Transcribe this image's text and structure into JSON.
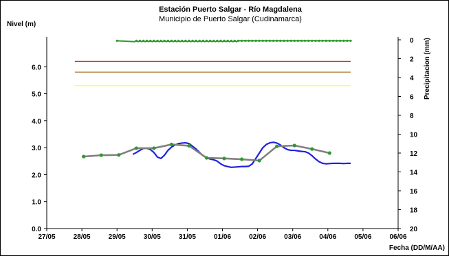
{
  "chart_data": {
    "type": "line",
    "title": "Estación Puerto Salgar - Río Magdalena",
    "subtitle": "Municipio de Puerto Salgar (Cudinamarca)",
    "ylabel": "Nivel (m)",
    "y2label": "Precipitacion (mm)",
    "xlabel": "Fecha (DD/M/AA)",
    "x_ticks": [
      "27/05",
      "28/05",
      "29/05",
      "30/05",
      "31/05",
      "01/06",
      "02/06",
      "03/06",
      "04/06",
      "05/06",
      "06/06"
    ],
    "ylim": [
      0,
      7
    ],
    "y_ticks": [
      "0.0",
      "1.0",
      "2.0",
      "3.0",
      "4.0",
      "5.0",
      "6.0"
    ],
    "y2lim": [
      0,
      20
    ],
    "y2_inverted": true,
    "y2_ticks": [
      "0",
      "2",
      "4",
      "6",
      "8",
      "10",
      "12",
      "14",
      "16",
      "18",
      "20"
    ],
    "grid": false,
    "thresholds": [
      {
        "value": 6.2,
        "color": "#e32222"
      },
      {
        "value": 5.8,
        "color": "#a67a2a"
      },
      {
        "value": 5.3,
        "color": "#ffff33"
      }
    ],
    "threshold_x_range": [
      0.8,
      8.65
    ],
    "series": [
      {
        "color": "#1f1fe0",
        "style": "line",
        "x": [
          2.45,
          2.55,
          2.65,
          2.75,
          2.85,
          2.95,
          3.05,
          3.15,
          3.25,
          3.35,
          3.45,
          3.55,
          3.65,
          3.75,
          3.85,
          3.95,
          4.05,
          4.15,
          4.25,
          4.35,
          4.45,
          4.55,
          4.65,
          4.75,
          4.85,
          4.95,
          5.05,
          5.15,
          5.25,
          5.35,
          5.45,
          5.55,
          5.65,
          5.75,
          5.85,
          5.95,
          6.05,
          6.15,
          6.25,
          6.35,
          6.45,
          6.55,
          6.65,
          6.75,
          6.85,
          6.95,
          7.05,
          7.15,
          7.25,
          7.35,
          7.45,
          7.55,
          7.65,
          7.75,
          7.85,
          7.95,
          8.05,
          8.15,
          8.25,
          8.35,
          8.45,
          8.55,
          8.65
        ],
        "y": [
          2.75,
          2.82,
          2.9,
          2.97,
          2.98,
          2.93,
          2.82,
          2.65,
          2.6,
          2.72,
          2.9,
          3.02,
          3.1,
          3.15,
          3.17,
          3.18,
          3.15,
          3.05,
          2.95,
          2.82,
          2.7,
          2.62,
          2.58,
          2.55,
          2.5,
          2.4,
          2.33,
          2.3,
          2.27,
          2.28,
          2.29,
          2.3,
          2.3,
          2.31,
          2.4,
          2.6,
          2.8,
          3.0,
          3.12,
          3.18,
          3.2,
          3.17,
          3.1,
          3.0,
          2.93,
          2.9,
          2.9,
          2.88,
          2.86,
          2.85,
          2.8,
          2.7,
          2.58,
          2.48,
          2.42,
          2.4,
          2.41,
          2.42,
          2.42,
          2.42,
          2.41,
          2.42,
          2.42
        ]
      },
      {
        "color": "#808080",
        "style": "line-markers",
        "marker_color": "#2e9a2e",
        "x": [
          1.05,
          1.55,
          2.05,
          2.55,
          3.05,
          3.55,
          4.05,
          4.55,
          5.05,
          5.55,
          6.05,
          6.55,
          7.05,
          7.55,
          8.05
        ],
        "y": [
          2.67,
          2.72,
          2.73,
          2.98,
          2.98,
          3.12,
          3.07,
          2.62,
          2.6,
          2.57,
          2.52,
          3.05,
          3.08,
          2.95,
          2.8
        ]
      }
    ],
    "precipitation": {
      "color": "#2e9a2e",
      "x": [
        2.0,
        2.5,
        2.55,
        2.6,
        2.65,
        2.7,
        2.75,
        2.8,
        2.85,
        2.9,
        2.95,
        3.0,
        3.05,
        3.1,
        3.15,
        3.2,
        3.25,
        3.3,
        3.35,
        3.4,
        3.45,
        3.5,
        3.55,
        3.6,
        3.65,
        3.7,
        3.75,
        3.8,
        3.85,
        3.9,
        3.95,
        4.0,
        4.05,
        4.1,
        4.15,
        4.2,
        4.25,
        4.3,
        4.35,
        4.4,
        4.45,
        4.5,
        4.55,
        4.6,
        4.65,
        4.7,
        4.75,
        4.8,
        4.85,
        4.9,
        4.95,
        5.0,
        5.05,
        5.1,
        5.15,
        5.2,
        5.25,
        5.3,
        5.35,
        5.4,
        5.45,
        5.5,
        5.55,
        5.6,
        5.65,
        5.7,
        5.75,
        5.8,
        5.85,
        5.9,
        5.95,
        6.0,
        6.05,
        6.1,
        6.15,
        6.2,
        6.25,
        6.3,
        6.35,
        6.4,
        6.45,
        6.5,
        6.55,
        6.6,
        6.65,
        6.7,
        6.75,
        6.8,
        6.85,
        6.9,
        6.95,
        7.0,
        7.05,
        7.1,
        7.15,
        7.2,
        7.25,
        7.3,
        7.35,
        7.4,
        7.45,
        7.5,
        7.55,
        7.6,
        7.65,
        7.7,
        7.75,
        7.8,
        7.85,
        7.9,
        7.95,
        8.0,
        8.05,
        8.1,
        8.15,
        8.2,
        8.25,
        8.3,
        8.35,
        8.4,
        8.45,
        8.5,
        8.55,
        8.6,
        8.65
      ],
      "y": [
        0.1,
        0.2,
        0.1,
        0.2,
        0.1,
        0.2,
        0.1,
        0.2,
        0.1,
        0.2,
        0.1,
        0.2,
        0.1,
        0.2,
        0.1,
        0.2,
        0.1,
        0.2,
        0.1,
        0.2,
        0.1,
        0.2,
        0.1,
        0.2,
        0.1,
        0.2,
        0.1,
        0.2,
        0.1,
        0.2,
        0.1,
        0.2,
        0.1,
        0.2,
        0.1,
        0.2,
        0.1,
        0.2,
        0.1,
        0.2,
        0.1,
        0.2,
        0.1,
        0.2,
        0.1,
        0.2,
        0.1,
        0.2,
        0.1,
        0.2,
        0.1,
        0.2,
        0.1,
        0.2,
        0.1,
        0.2,
        0.1,
        0.2,
        0.1,
        0.2,
        0.1,
        0.1,
        0.1,
        0.1,
        0.1,
        0.1,
        0.1,
        0.1,
        0.1,
        0.1,
        0.1,
        0.1,
        0.1,
        0.1,
        0.1,
        0.1,
        0.1,
        0.1,
        0.1,
        0.1,
        0.1,
        0.1,
        0.1,
        0.1,
        0.1,
        0.1,
        0.1,
        0.1,
        0.1,
        0.1,
        0.1,
        0.1,
        0.1,
        0.1,
        0.1,
        0.1,
        0.1,
        0.1,
        0.1,
        0.1,
        0.1,
        0.1,
        0.1,
        0.1,
        0.1,
        0.1,
        0.1,
        0.1,
        0.1,
        0.1,
        0.1,
        0.1,
        0.1,
        0.1,
        0.1,
        0.1,
        0.1,
        0.1,
        0.1,
        0.1,
        0.1,
        0.1,
        0.1,
        0.1,
        0.1
      ]
    }
  }
}
